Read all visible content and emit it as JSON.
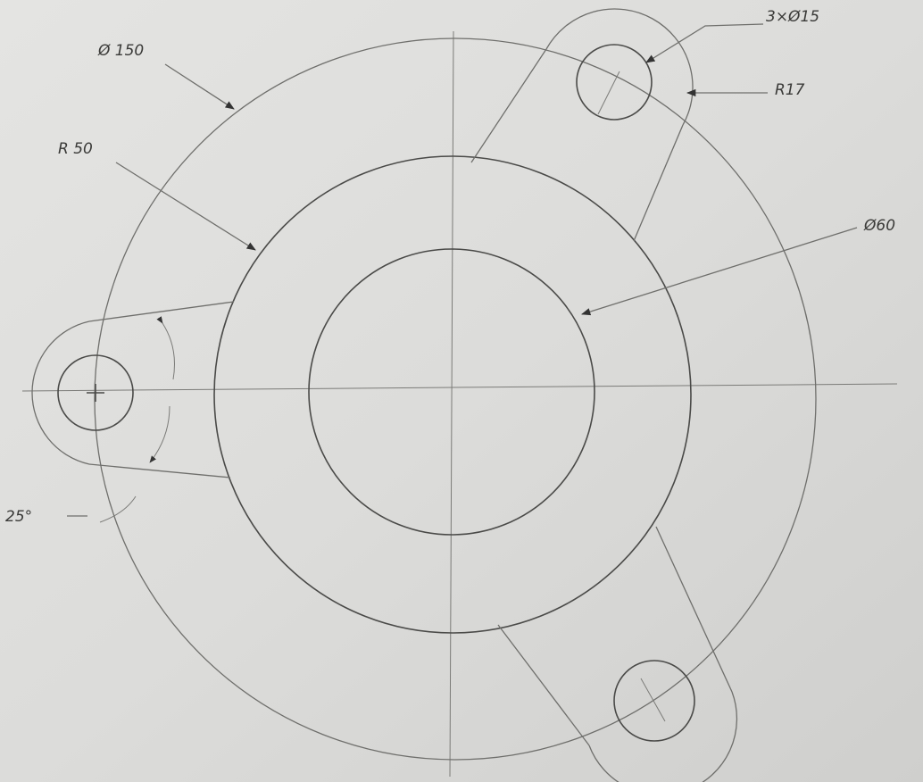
{
  "annotations": [
    "Ø 150",
    "R 50",
    "3×Ø15",
    "R17",
    "Ø60",
    "25°"
  ]
}
